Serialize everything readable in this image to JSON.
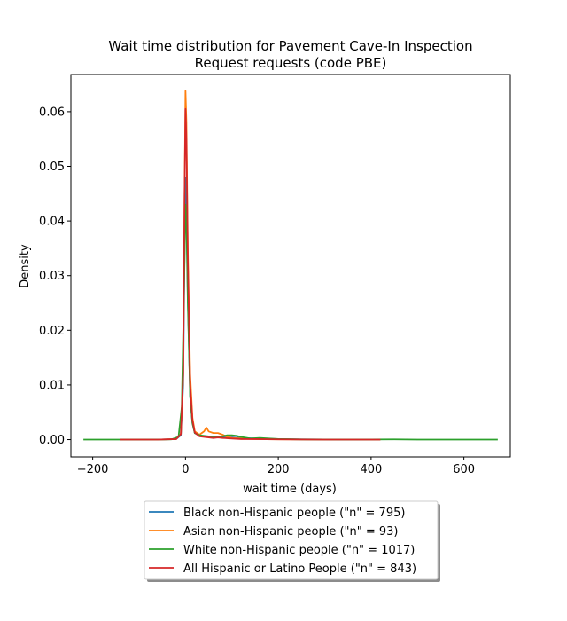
{
  "chart_data": {
    "type": "line",
    "title": [
      "Wait time distribution  for Pavement Cave-In Inspection",
      "Request requests (code PBE)"
    ],
    "xlabel": "wait time (days)",
    "ylabel": "Density",
    "xlim": [
      -247,
      700
    ],
    "ylim": [
      -0.00316,
      0.0668
    ],
    "xticks": [
      -200,
      0,
      200,
      400,
      600
    ],
    "yticks": [
      0.0,
      0.01,
      0.02,
      0.03,
      0.04,
      0.05,
      0.06
    ],
    "xtick_labels": [
      "−200",
      "0",
      "200",
      "400",
      "600"
    ],
    "ytick_labels": [
      "0.00",
      "0.01",
      "0.02",
      "0.03",
      "0.04",
      "0.05",
      "0.06"
    ],
    "legend_position": "below plot, centered",
    "series": [
      {
        "name": "Black non-Hispanic people (\"n\" = 795)",
        "color": "#1f77b4",
        "x": [
          -140,
          -60,
          -20,
          -10,
          -5,
          -2,
          0,
          2,
          5,
          10,
          15,
          20,
          30,
          40,
          50,
          60,
          80,
          100,
          120,
          150,
          200,
          250,
          300,
          350,
          400,
          420
        ],
        "y": [
          0,
          0,
          0.0001,
          0.0008,
          0.01,
          0.035,
          0.048,
          0.044,
          0.026,
          0.008,
          0.003,
          0.0012,
          0.0007,
          0.0006,
          0.0005,
          0.0005,
          0.0004,
          0.0004,
          0.0003,
          0.0002,
          0.0001,
          5e-05,
          2e-05,
          1e-05,
          0,
          0
        ]
      },
      {
        "name": "Asian non-Hispanic people (\"n\" = 93)",
        "color": "#ff7f0e",
        "x": [
          -140,
          -60,
          -20,
          -10,
          -5,
          -2,
          0,
          2,
          5,
          10,
          15,
          20,
          30,
          40,
          45,
          50,
          60,
          70,
          80,
          90,
          100,
          120,
          150,
          200,
          250,
          300,
          350,
          400,
          420
        ],
        "y": [
          0,
          0,
          0.0001,
          0.001,
          0.012,
          0.045,
          0.0638,
          0.058,
          0.035,
          0.012,
          0.004,
          0.0015,
          0.0009,
          0.0015,
          0.0022,
          0.0015,
          0.0012,
          0.0012,
          0.0009,
          0.0005,
          0.0003,
          0.0002,
          0.0001,
          5e-05,
          2e-05,
          1e-05,
          0,
          0,
          0
        ]
      },
      {
        "name": "White non-Hispanic people (\"n\" = 1017)",
        "color": "#2ca02c",
        "x": [
          -220,
          -100,
          -30,
          -15,
          -8,
          -3,
          0,
          2,
          5,
          10,
          15,
          20,
          30,
          40,
          50,
          60,
          70,
          80,
          90,
          100,
          110,
          120,
          140,
          160,
          200,
          250,
          300,
          350,
          400,
          450,
          500,
          550,
          600,
          673
        ],
        "y": [
          0,
          0,
          5e-05,
          0.0005,
          0.006,
          0.028,
          0.043,
          0.04,
          0.025,
          0.008,
          0.003,
          0.0012,
          0.0008,
          0.0007,
          0.0006,
          0.0006,
          0.0005,
          0.0006,
          0.0008,
          0.0008,
          0.0007,
          0.0005,
          0.0002,
          0.0003,
          0.0001,
          5e-05,
          2e-05,
          1e-05,
          2e-05,
          5e-05,
          1e-05,
          0,
          0,
          0
        ]
      },
      {
        "name": "All Hispanic or Latino People (\"n\" = 843)",
        "color": "#d62728",
        "x": [
          -140,
          -60,
          -20,
          -10,
          -5,
          -2,
          0,
          2,
          5,
          10,
          15,
          20,
          30,
          40,
          50,
          60,
          70,
          80,
          100,
          120,
          150,
          200,
          250,
          300,
          350,
          400,
          420
        ],
        "y": [
          0,
          0,
          0.0001,
          0.001,
          0.012,
          0.045,
          0.0605,
          0.055,
          0.033,
          0.01,
          0.0035,
          0.0013,
          0.0006,
          0.0005,
          0.0004,
          0.0003,
          0.0004,
          0.0003,
          0.0002,
          0.0001,
          0.0001,
          5e-05,
          2e-05,
          1e-05,
          0,
          0,
          0
        ]
      }
    ]
  }
}
